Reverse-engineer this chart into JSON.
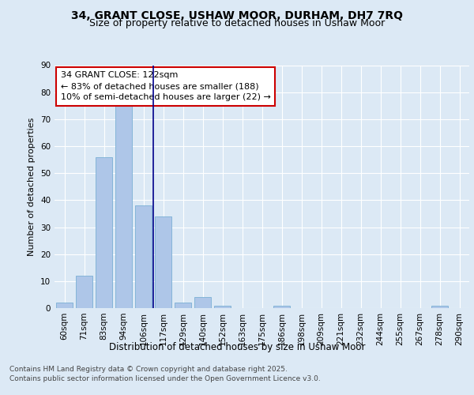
{
  "title1": "34, GRANT CLOSE, USHAW MOOR, DURHAM, DH7 7RQ",
  "title2": "Size of property relative to detached houses in Ushaw Moor",
  "xlabel": "Distribution of detached houses by size in Ushaw Moor",
  "ylabel": "Number of detached properties",
  "categories": [
    "60sqm",
    "71sqm",
    "83sqm",
    "94sqm",
    "106sqm",
    "117sqm",
    "129sqm",
    "140sqm",
    "152sqm",
    "163sqm",
    "175sqm",
    "186sqm",
    "198sqm",
    "209sqm",
    "221sqm",
    "232sqm",
    "244sqm",
    "255sqm",
    "267sqm",
    "278sqm",
    "290sqm"
  ],
  "values": [
    2,
    12,
    56,
    75,
    38,
    34,
    2,
    4,
    1,
    0,
    0,
    1,
    0,
    0,
    0,
    0,
    0,
    0,
    0,
    1,
    0
  ],
  "bar_color": "#aec6e8",
  "bar_edge_color": "#7aafd4",
  "subject_label": "34 GRANT CLOSE: 122sqm",
  "annotation_line1": "← 83% of detached houses are smaller (188)",
  "annotation_line2": "10% of semi-detached houses are larger (22) →",
  "annotation_box_facecolor": "#ffffff",
  "annotation_box_edgecolor": "#cc0000",
  "subject_line_color": "#00008b",
  "background_color": "#dce9f5",
  "ylim_max": 90,
  "yticks": [
    0,
    10,
    20,
    30,
    40,
    50,
    60,
    70,
    80,
    90
  ],
  "footer_line1": "Contains HM Land Registry data © Crown copyright and database right 2025.",
  "footer_line2": "Contains public sector information licensed under the Open Government Licence v3.0.",
  "title1_fontsize": 10,
  "title2_fontsize": 9,
  "xlabel_fontsize": 8.5,
  "ylabel_fontsize": 8,
  "tick_fontsize": 7.5,
  "annotation_fontsize": 8,
  "footer_fontsize": 6.5
}
